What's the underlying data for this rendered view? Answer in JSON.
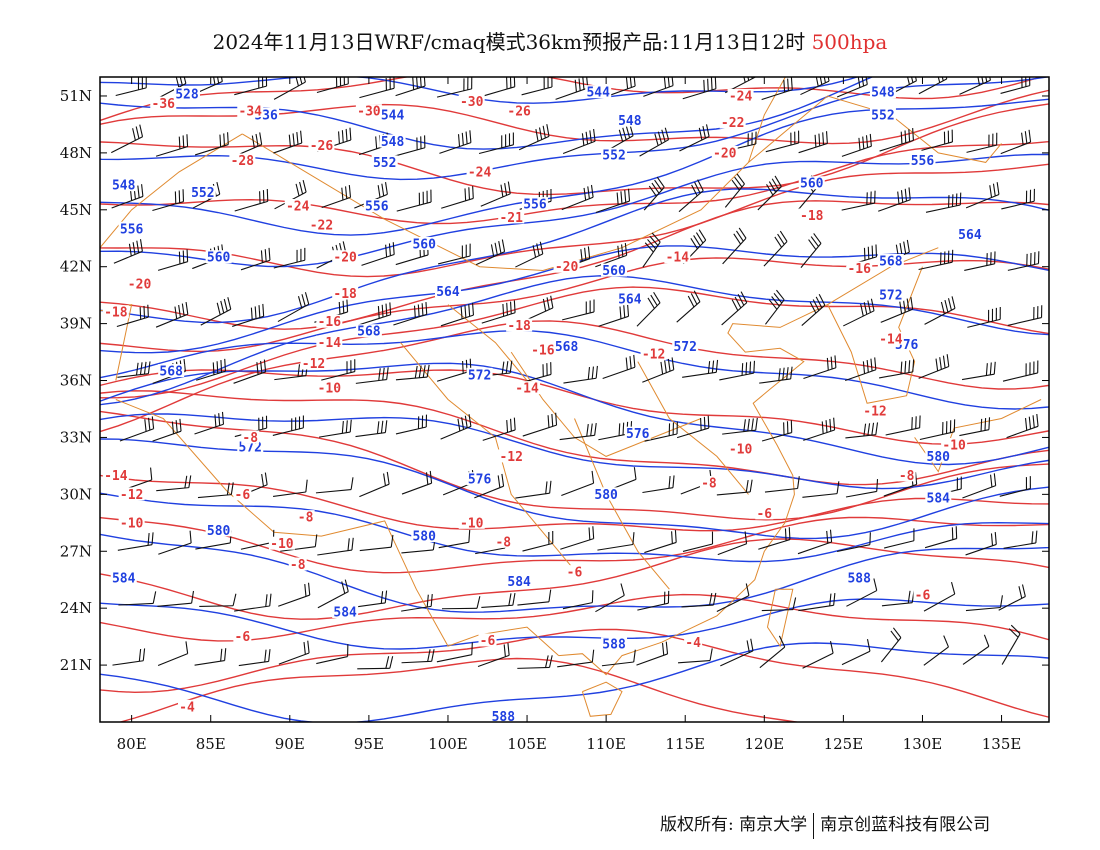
{
  "title": {
    "main": "2024年11月13日WRF/cmaq模式36km预报产品:11月13日12时",
    "level": "500hpa"
  },
  "colors": {
    "height_contour": "#2040e0",
    "temperature_contour": "#e03a3a",
    "coastline_border": "#e08a30",
    "wind_barb": "#111111",
    "frame": "#000000"
  },
  "map": {
    "lon_range": [
      78,
      138
    ],
    "lat_range": [
      18,
      52
    ],
    "x_ticks": [
      "80E",
      "85E",
      "90E",
      "95E",
      "100E",
      "105E",
      "110E",
      "115E",
      "120E",
      "125E",
      "130E",
      "135E"
    ],
    "y_ticks": [
      "51N",
      "48N",
      "45N",
      "42N",
      "39N",
      "36N",
      "33N",
      "30N",
      "27N",
      "24N",
      "21N"
    ],
    "height_labels": [
      {
        "text": "528",
        "lon": 83.5,
        "lat": 51.1
      },
      {
        "text": "536",
        "lon": 88.5,
        "lat": 50.0
      },
      {
        "text": "544",
        "lon": 96.5,
        "lat": 50.0
      },
      {
        "text": "544",
        "lon": 109.5,
        "lat": 51.2
      },
      {
        "text": "548",
        "lon": 111.5,
        "lat": 49.7
      },
      {
        "text": "548",
        "lon": 127.5,
        "lat": 51.2
      },
      {
        "text": "552",
        "lon": 127.5,
        "lat": 50.0
      },
      {
        "text": "548",
        "lon": 96.5,
        "lat": 48.6
      },
      {
        "text": "552",
        "lon": 96.0,
        "lat": 47.5
      },
      {
        "text": "552",
        "lon": 110.5,
        "lat": 47.9
      },
      {
        "text": "556",
        "lon": 130.0,
        "lat": 47.6
      },
      {
        "text": "548",
        "lon": 79.5,
        "lat": 46.3
      },
      {
        "text": "552",
        "lon": 84.5,
        "lat": 45.9
      },
      {
        "text": "556",
        "lon": 80.0,
        "lat": 44.0
      },
      {
        "text": "556",
        "lon": 95.5,
        "lat": 45.2
      },
      {
        "text": "556",
        "lon": 105.5,
        "lat": 45.3
      },
      {
        "text": "560",
        "lon": 123.0,
        "lat": 46.4
      },
      {
        "text": "564",
        "lon": 133.0,
        "lat": 43.7
      },
      {
        "text": "560",
        "lon": 85.5,
        "lat": 42.5
      },
      {
        "text": "560",
        "lon": 98.5,
        "lat": 43.2
      },
      {
        "text": "560",
        "lon": 110.5,
        "lat": 41.8
      },
      {
        "text": "568",
        "lon": 128.0,
        "lat": 42.3
      },
      {
        "text": "564",
        "lon": 100.0,
        "lat": 40.7
      },
      {
        "text": "564",
        "lon": 111.5,
        "lat": 40.3
      },
      {
        "text": "572",
        "lon": 128.0,
        "lat": 40.5
      },
      {
        "text": "568",
        "lon": 95.0,
        "lat": 38.6
      },
      {
        "text": "568",
        "lon": 107.5,
        "lat": 37.8
      },
      {
        "text": "572",
        "lon": 115.0,
        "lat": 37.8
      },
      {
        "text": "576",
        "lon": 129.0,
        "lat": 37.9
      },
      {
        "text": "568",
        "lon": 82.5,
        "lat": 36.5
      },
      {
        "text": "572",
        "lon": 102.0,
        "lat": 36.3
      },
      {
        "text": "576",
        "lon": 112.0,
        "lat": 33.2
      },
      {
        "text": "572",
        "lon": 87.5,
        "lat": 32.5
      },
      {
        "text": "580",
        "lon": 131.0,
        "lat": 32.0
      },
      {
        "text": "576",
        "lon": 102.0,
        "lat": 30.8
      },
      {
        "text": "580",
        "lon": 110.0,
        "lat": 30.0
      },
      {
        "text": "584",
        "lon": 131.0,
        "lat": 29.8
      },
      {
        "text": "580",
        "lon": 85.5,
        "lat": 28.1
      },
      {
        "text": "580",
        "lon": 98.5,
        "lat": 27.8
      },
      {
        "text": "584",
        "lon": 79.5,
        "lat": 25.6
      },
      {
        "text": "584",
        "lon": 104.5,
        "lat": 25.4
      },
      {
        "text": "584",
        "lon": 93.5,
        "lat": 23.8
      },
      {
        "text": "588",
        "lon": 126.0,
        "lat": 25.6
      },
      {
        "text": "588",
        "lon": 110.5,
        "lat": 22.1
      },
      {
        "text": "588",
        "lon": 103.5,
        "lat": 18.3
      }
    ],
    "temperature_labels": [
      {
        "text": "-36",
        "lon": 82.0,
        "lat": 50.6
      },
      {
        "text": "-34",
        "lon": 87.5,
        "lat": 50.2
      },
      {
        "text": "-30",
        "lon": 95.0,
        "lat": 50.2
      },
      {
        "text": "-30",
        "lon": 101.5,
        "lat": 50.7
      },
      {
        "text": "-26",
        "lon": 104.5,
        "lat": 50.2
      },
      {
        "text": "-24",
        "lon": 118.5,
        "lat": 51.0
      },
      {
        "text": "-22",
        "lon": 118.0,
        "lat": 49.6
      },
      {
        "text": "-26",
        "lon": 92.0,
        "lat": 48.4
      },
      {
        "text": "-28",
        "lon": 87.0,
        "lat": 47.6
      },
      {
        "text": "-24",
        "lon": 102.0,
        "lat": 47.0
      },
      {
        "text": "-20",
        "lon": 117.5,
        "lat": 48.0
      },
      {
        "text": "-24",
        "lon": 90.5,
        "lat": 45.2
      },
      {
        "text": "-22",
        "lon": 92.0,
        "lat": 44.2
      },
      {
        "text": "-21",
        "lon": 104.0,
        "lat": 44.6
      },
      {
        "text": "-18",
        "lon": 123.0,
        "lat": 44.7
      },
      {
        "text": "-20",
        "lon": 93.5,
        "lat": 42.5
      },
      {
        "text": "-20",
        "lon": 107.5,
        "lat": 42.0
      },
      {
        "text": "-14",
        "lon": 114.5,
        "lat": 42.5
      },
      {
        "text": "-16",
        "lon": 126.0,
        "lat": 41.9
      },
      {
        "text": "-20",
        "lon": 80.5,
        "lat": 41.1
      },
      {
        "text": "-18",
        "lon": 93.5,
        "lat": 40.6
      },
      {
        "text": "-18",
        "lon": 79.0,
        "lat": 39.6
      },
      {
        "text": "-16",
        "lon": 92.5,
        "lat": 39.1
      },
      {
        "text": "-18",
        "lon": 104.5,
        "lat": 38.9
      },
      {
        "text": "-14",
        "lon": 92.5,
        "lat": 38.0
      },
      {
        "text": "-12",
        "lon": 91.5,
        "lat": 36.9
      },
      {
        "text": "-16",
        "lon": 106.0,
        "lat": 37.6
      },
      {
        "text": "-12",
        "lon": 113.0,
        "lat": 37.4
      },
      {
        "text": "-14",
        "lon": 128.0,
        "lat": 38.2
      },
      {
        "text": "-10",
        "lon": 92.5,
        "lat": 35.6
      },
      {
        "text": "-14",
        "lon": 105.0,
        "lat": 35.6
      },
      {
        "text": "-12",
        "lon": 127.0,
        "lat": 34.4
      },
      {
        "text": "-8",
        "lon": 87.5,
        "lat": 33.0
      },
      {
        "text": "-10",
        "lon": 118.5,
        "lat": 32.4
      },
      {
        "text": "-10",
        "lon": 132.0,
        "lat": 32.6
      },
      {
        "text": "-12",
        "lon": 104.0,
        "lat": 32.0
      },
      {
        "text": "-8",
        "lon": 129.0,
        "lat": 31.0
      },
      {
        "text": "-14",
        "lon": 79.0,
        "lat": 31.0
      },
      {
        "text": "-12",
        "lon": 80.0,
        "lat": 30.0
      },
      {
        "text": "-6",
        "lon": 87.0,
        "lat": 30.0
      },
      {
        "text": "-8",
        "lon": 116.5,
        "lat": 30.6
      },
      {
        "text": "-8",
        "lon": 91.0,
        "lat": 28.8
      },
      {
        "text": "-10",
        "lon": 80.0,
        "lat": 28.5
      },
      {
        "text": "-10",
        "lon": 101.5,
        "lat": 28.5
      },
      {
        "text": "-6",
        "lon": 120.0,
        "lat": 29.0
      },
      {
        "text": "-10",
        "lon": 89.5,
        "lat": 27.4
      },
      {
        "text": "-8",
        "lon": 103.5,
        "lat": 27.5
      },
      {
        "text": "-8",
        "lon": 90.5,
        "lat": 26.3
      },
      {
        "text": "-6",
        "lon": 108.0,
        "lat": 25.9
      },
      {
        "text": "-6",
        "lon": 87.0,
        "lat": 22.5
      },
      {
        "text": "-6",
        "lon": 102.5,
        "lat": 22.3
      },
      {
        "text": "-4",
        "lon": 115.5,
        "lat": 22.2
      },
      {
        "text": "-6",
        "lon": 130.0,
        "lat": 24.7
      },
      {
        "text": "-4",
        "lon": 83.5,
        "lat": 18.8
      }
    ]
  },
  "copyright": {
    "left": "版权所有: 南京大学",
    "right": "南京创蓝科技有限公司"
  }
}
